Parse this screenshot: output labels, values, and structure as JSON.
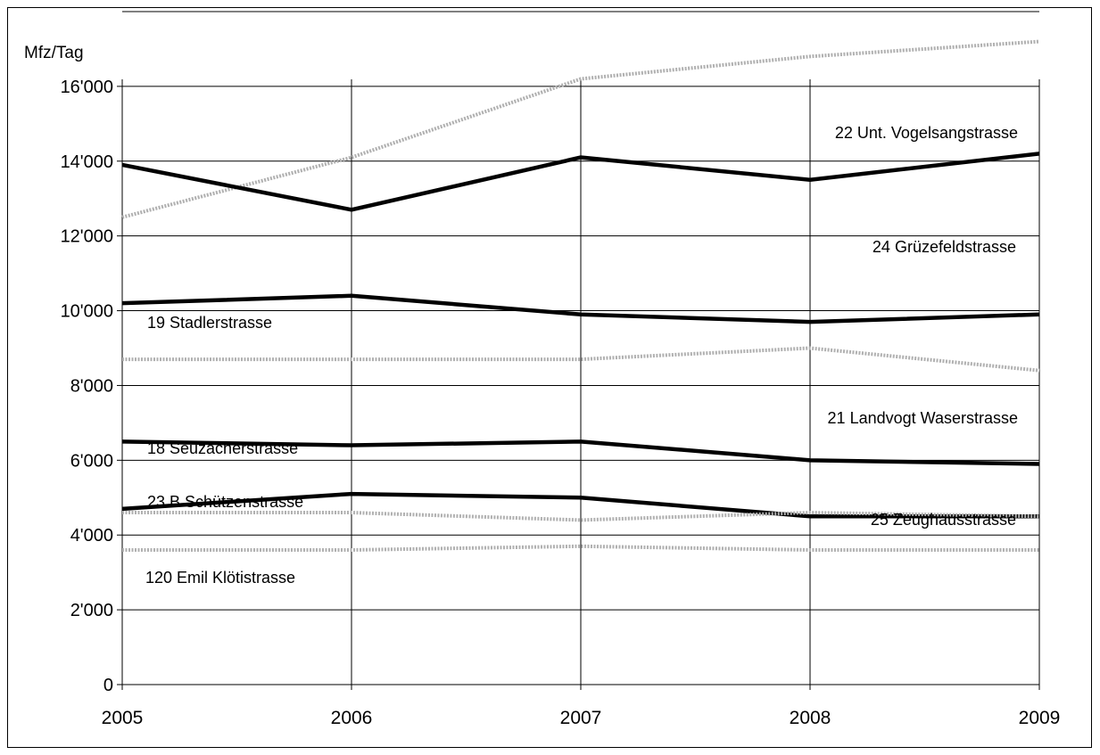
{
  "chart_data": {
    "type": "line",
    "title": "",
    "xlabel": "",
    "ylabel": "Mfz/Tag",
    "x": [
      "2005",
      "2006",
      "2007",
      "2008",
      "2009"
    ],
    "ylim": [
      0,
      18000
    ],
    "yticks": [
      0,
      2000,
      4000,
      6000,
      8000,
      10000,
      12000,
      14000,
      16000
    ],
    "ytick_labels": [
      "0",
      "2'000",
      "4'000",
      "6'000",
      "8'000",
      "10'000",
      "12'000",
      "14'000",
      "16'000"
    ],
    "grid": true,
    "series": [
      {
        "name": "22 Unt. Vogelsangstrasse",
        "style": "dotted-gray",
        "values": [
          12500,
          14100,
          16200,
          16800,
          17200
        ]
      },
      {
        "name": "24 Grüzefeldstrasse",
        "style": "solid-black",
        "values": [
          13900,
          12700,
          14100,
          13500,
          14200
        ]
      },
      {
        "name": "19 Stadlerstrasse",
        "style": "solid-black",
        "values": [
          10200,
          10400,
          9900,
          9700,
          9900
        ]
      },
      {
        "name": "21 Landvogt Waserstrasse",
        "style": "dotted-gray",
        "values": [
          8700,
          8700,
          8700,
          9000,
          8400
        ]
      },
      {
        "name": "18 Seuzacherstrasse",
        "style": "solid-black",
        "values": [
          6500,
          6400,
          6500,
          6000,
          5900
        ]
      },
      {
        "name": "23 B Schützenstrasse",
        "style": "solid-black",
        "values": [
          4700,
          5100,
          5000,
          4500,
          4500
        ]
      },
      {
        "name": "25 Zeughausstrasse",
        "style": "dotted-gray",
        "values": [
          4600,
          4600,
          4400,
          4600,
          4500
        ]
      },
      {
        "name": "120 Emil Klötistrasse",
        "style": "dotted-gray",
        "values": [
          3600,
          3600,
          3700,
          3600,
          3600
        ]
      }
    ]
  },
  "colors": {
    "solid": "#000000",
    "dotted": "#b0b0b0",
    "grid": "#000000"
  }
}
